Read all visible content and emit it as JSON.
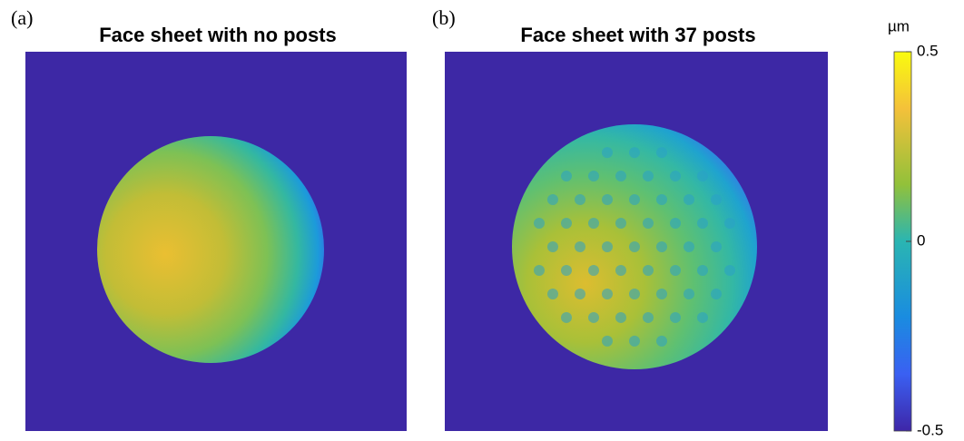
{
  "chart_data": {
    "type": "heatmap",
    "panels": [
      {
        "label": "(a)",
        "title": "Face sheet with no posts"
      },
      {
        "label": "(b)",
        "title": "Face sheet with 37 posts"
      }
    ],
    "colorbar": {
      "unit": "µm",
      "lim": [
        -0.5,
        0.5
      ],
      "ticks": [
        0.5,
        0,
        -0.5
      ]
    }
  }
}
